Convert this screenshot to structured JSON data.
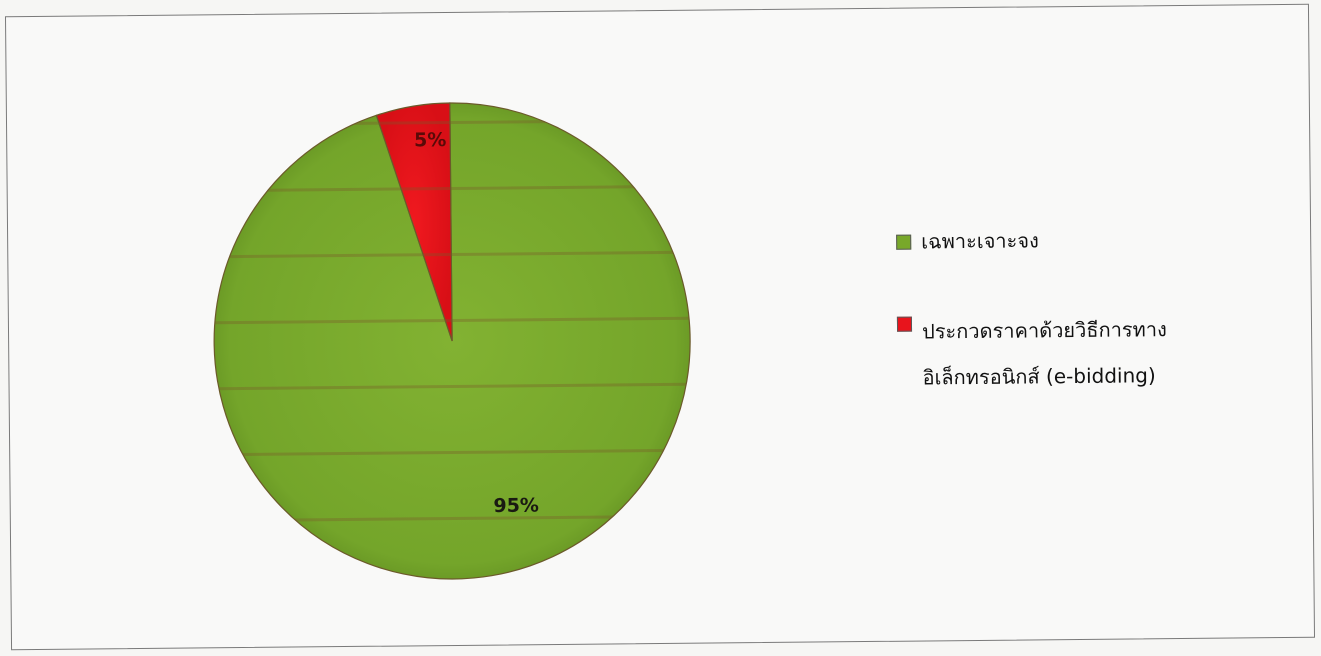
{
  "chart_data": {
    "type": "pie",
    "title": "",
    "slices": [
      {
        "label": "เฉพาะเจาะจง",
        "value": 95,
        "display": "95%",
        "color": "#78a82a"
      },
      {
        "label": "ประกวดราคาด้วยวิธีการทางอิเล็กทรอนิกส์ (e-bidding)",
        "value": 5,
        "display": "5%",
        "color": "#e8141c"
      }
    ],
    "legend_position": "right"
  }
}
